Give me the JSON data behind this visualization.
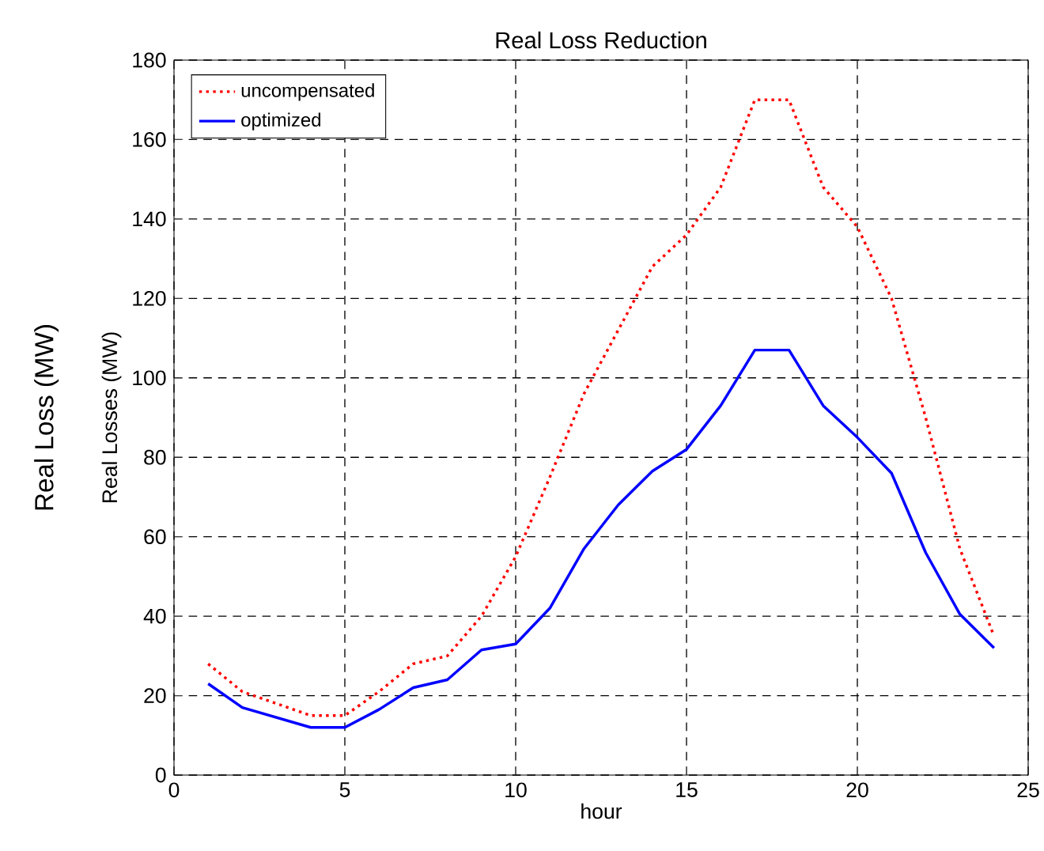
{
  "chart_data": {
    "type": "line",
    "title": "Real Loss Reduction",
    "xlabel": "hour",
    "ylabel": "Real Losses (MW)",
    "annotations": [
      "Real Loss (MW)"
    ],
    "x": [
      1,
      2,
      3,
      4,
      5,
      6,
      7,
      8,
      9,
      10,
      11,
      12,
      13,
      14,
      15,
      16,
      17,
      18,
      19,
      20,
      21,
      22,
      23,
      24
    ],
    "series": [
      {
        "name": "uncompensated",
        "color": "#ff0000",
        "line_style": "dotted",
        "values": [
          28,
          21,
          18,
          15,
          15,
          21,
          28,
          30,
          40,
          55,
          75,
          96,
          112,
          128,
          136,
          148,
          170,
          170,
          148,
          138,
          120,
          90,
          57,
          35
        ]
      },
      {
        "name": "optimized",
        "color": "#0000ff",
        "line_style": "solid",
        "values": [
          23,
          17,
          14.5,
          12,
          12,
          16.5,
          22,
          24,
          31.5,
          33,
          42,
          57,
          68,
          76.5,
          82,
          93,
          107,
          107,
          93,
          85,
          76,
          56,
          40.5,
          32
        ]
      }
    ],
    "xlim": [
      0,
      25
    ],
    "xticks": [
      0,
      5,
      10,
      15,
      20,
      25
    ],
    "ylim": [
      0,
      180
    ],
    "yticks": [
      0,
      20,
      40,
      60,
      80,
      100,
      120,
      140,
      160,
      180
    ],
    "grid": true,
    "legend": "top left"
  }
}
